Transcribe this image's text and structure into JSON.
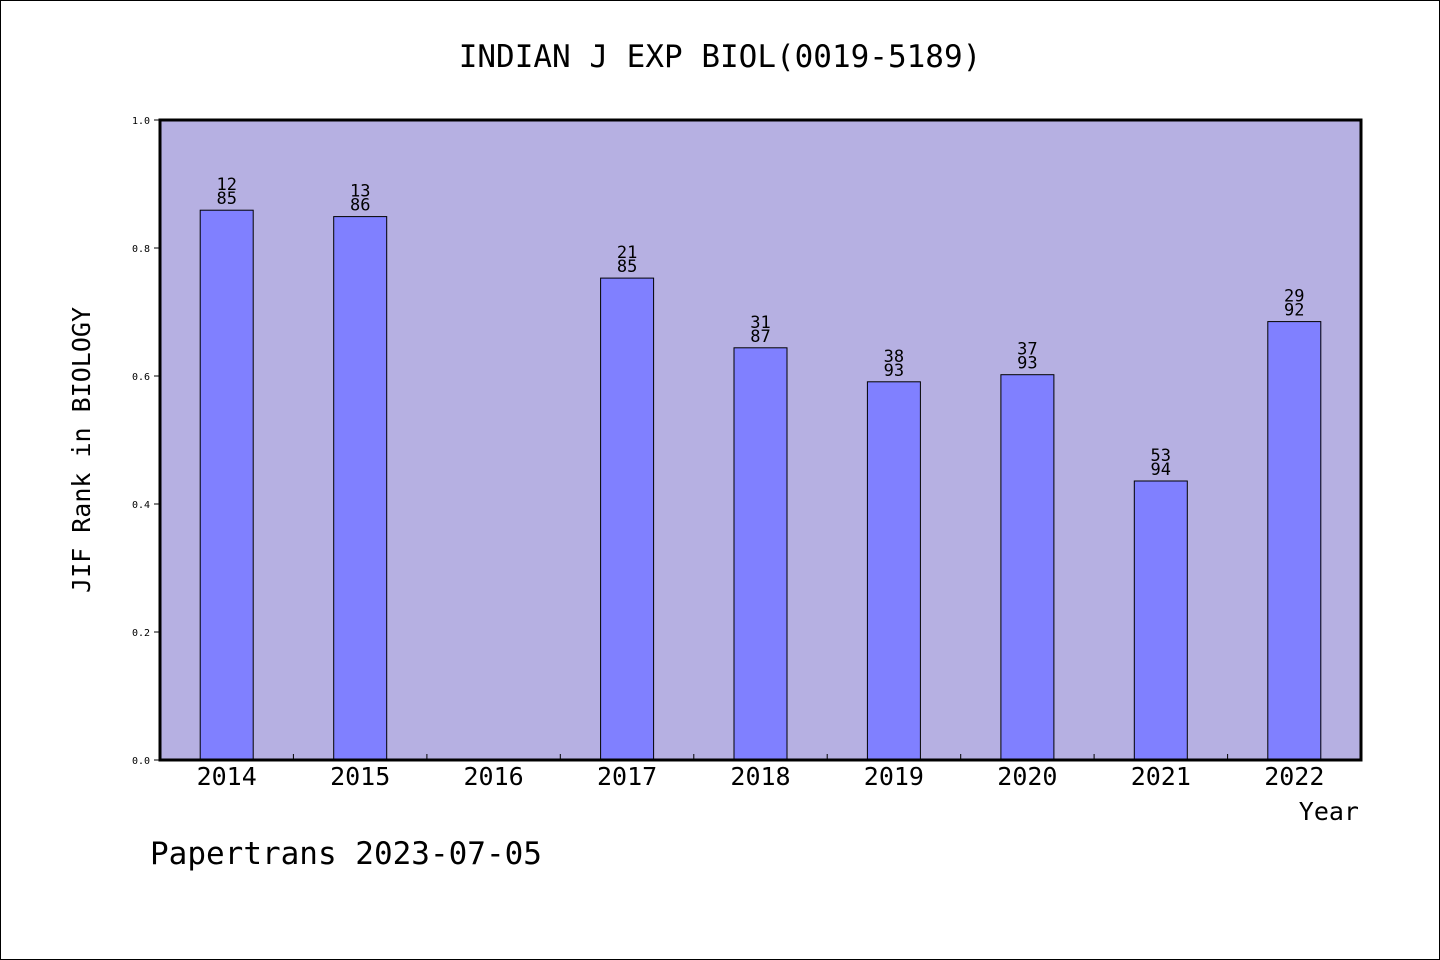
{
  "chart_data": {
    "type": "bar",
    "title": "INDIAN J EXP BIOL(0019-5189)",
    "xlabel": "Year",
    "ylabel": "JIF Rank in BIOLOGY",
    "ylim": [
      0,
      1
    ],
    "yticks": [
      "0.0",
      "0.2",
      "0.4",
      "0.6",
      "0.8",
      "1.0"
    ],
    "categories": [
      "2014",
      "2015",
      "2016",
      "2017",
      "2018",
      "2019",
      "2020",
      "2021",
      "2022"
    ],
    "values": [
      0.859,
      0.849,
      null,
      0.753,
      0.644,
      0.591,
      0.602,
      0.436,
      0.685
    ],
    "rank_labels": [
      {
        "rank": "12",
        "total": "85"
      },
      {
        "rank": "13",
        "total": "86"
      },
      null,
      {
        "rank": "21",
        "total": "85"
      },
      {
        "rank": "31",
        "total": "87"
      },
      {
        "rank": "38",
        "total": "93"
      },
      {
        "rank": "37",
        "total": "93"
      },
      {
        "rank": "53",
        "total": "94"
      },
      {
        "rank": "29",
        "total": "92"
      }
    ],
    "grid": false,
    "colors": {
      "plot_background": "#b6b0e2",
      "bar_fill": "#8080ff",
      "bar_stroke": "#000000"
    }
  },
  "footer": {
    "watermark": "Papertrans 2023-07-05"
  }
}
